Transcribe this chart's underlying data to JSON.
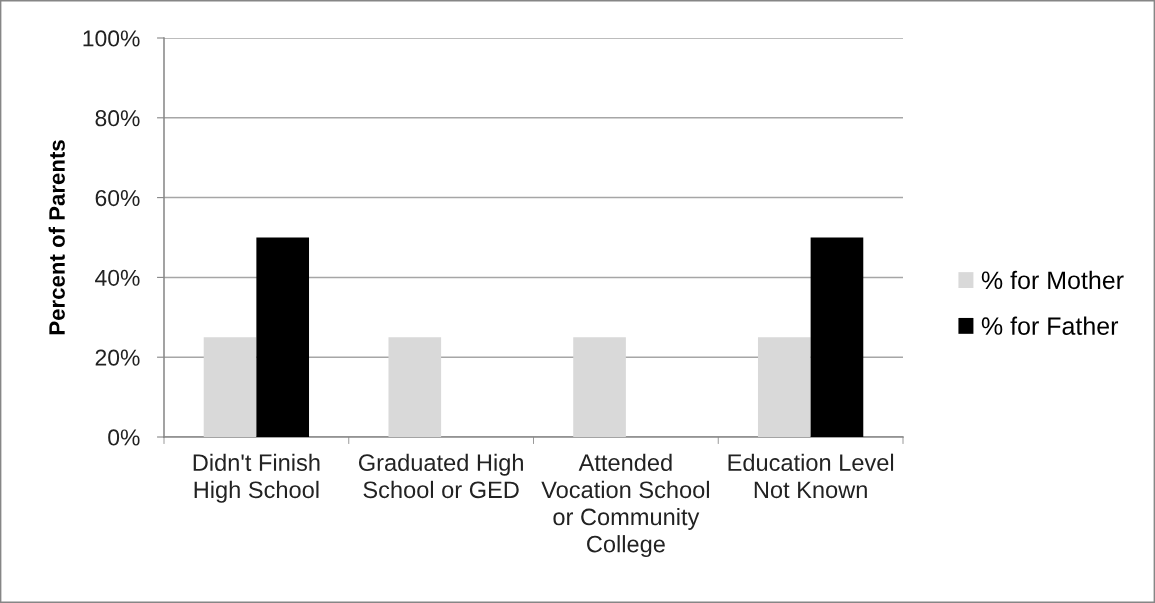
{
  "chart_data": {
    "type": "bar",
    "categories": [
      "Didn't Finish\nHigh School",
      "Graduated High\nSchool or GED",
      "Attended\nVocation School\nor Community\nCollege",
      "Education Level\nNot Known"
    ],
    "ylabel": "Percent of Parents",
    "series": [
      {
        "name": "% for Mother",
        "color": "#d9d9d9",
        "values": [
          25,
          25,
          25,
          25
        ]
      },
      {
        "name": "% for Father",
        "color": "#000000",
        "values": [
          50,
          0,
          0,
          50
        ]
      }
    ],
    "ylim": [
      0,
      100
    ],
    "yticks": [
      {
        "value": 0,
        "label": "0%"
      },
      {
        "value": 20,
        "label": "20%"
      },
      {
        "value": 40,
        "label": "40%"
      },
      {
        "value": 60,
        "label": "60%"
      },
      {
        "value": 80,
        "label": "80%"
      },
      {
        "value": 100,
        "label": "100%"
      }
    ],
    "grid": "y",
    "legend": "right"
  }
}
